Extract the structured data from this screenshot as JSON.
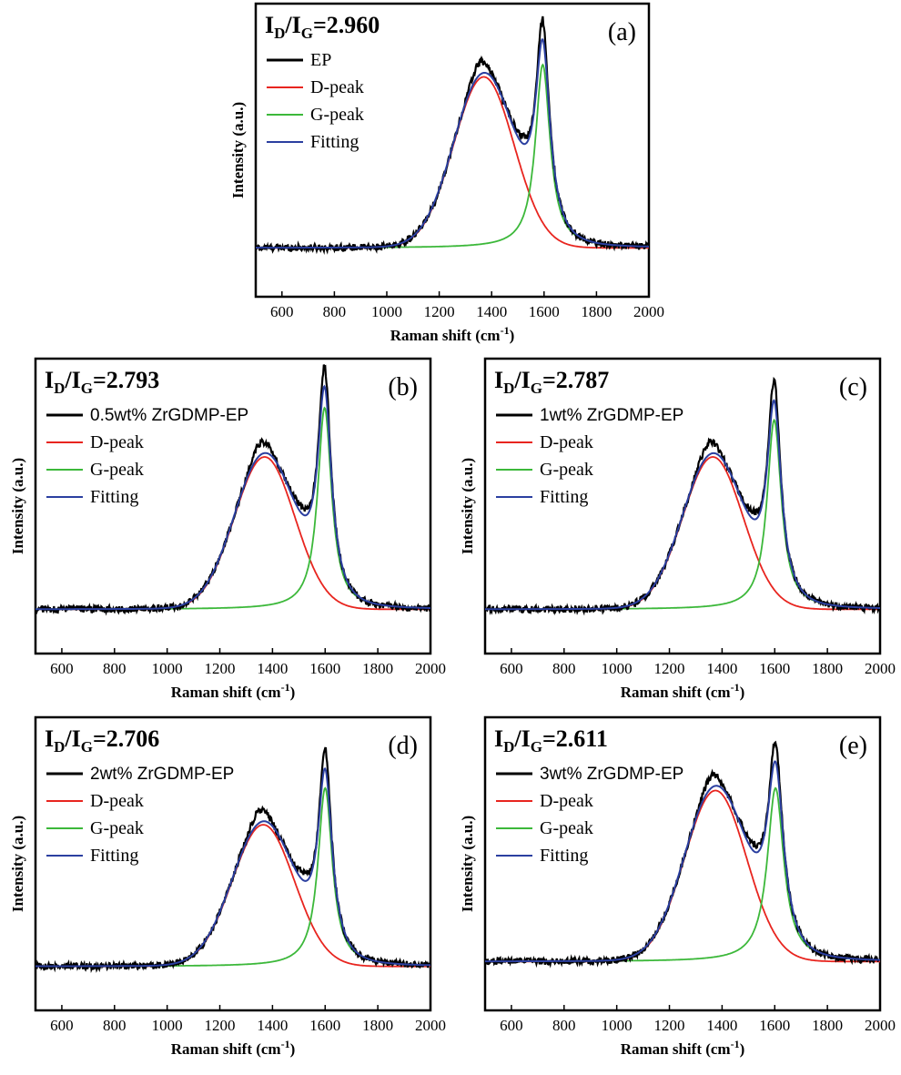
{
  "chart_data": [
    {
      "type": "line",
      "panel": "(a)",
      "ratio": {
        "prefix": "I",
        "sub1": "D",
        "slash": "/I",
        "sub2": "G",
        "value": "=2.960"
      },
      "xlabel": "Raman shift (cm",
      "xlabel_sup": "-1",
      "xlabel_end": ")",
      "ylabel": "Intensity (a.u.)",
      "xlim": [
        500,
        2000
      ],
      "ylim": [
        0,
        1.2
      ],
      "xticks": [
        600,
        800,
        1000,
        1200,
        1400,
        1600,
        1800,
        2000
      ],
      "legend": [
        "EP",
        "D-peak",
        "G-peak",
        "Fitting"
      ],
      "series": [
        {
          "name": "EP",
          "color": "#000000"
        },
        {
          "name": "D-peak",
          "color": "#e8251f"
        },
        {
          "name": "G-peak",
          "color": "#3cb83a"
        },
        {
          "name": "Fitting",
          "color": "#2b3fa0"
        }
      ],
      "d_peak": {
        "center": 1370,
        "height": 0.7,
        "width": 115
      },
      "g_peak": {
        "center": 1595,
        "height": 0.75,
        "width": 34
      },
      "baseline": 0.2
    },
    {
      "type": "line",
      "panel": "(b)",
      "ratio": {
        "prefix": "I",
        "sub1": "D",
        "slash": "/I",
        "sub2": "G",
        "value": "=2.793"
      },
      "xlabel": "Raman shift (cm",
      "xlabel_sup": "-1",
      "xlabel_end": ")",
      "ylabel": "Intensity (a.u.)",
      "xlim": [
        500,
        2000
      ],
      "ylim": [
        0,
        1.2
      ],
      "xticks": [
        600,
        800,
        1000,
        1200,
        1400,
        1600,
        1800,
        2000
      ],
      "legend": [
        "0.5wt% ZrGDMP-EP",
        "D-peak",
        "G-peak",
        "Fitting"
      ],
      "series": [
        {
          "name": "0.5wt% ZrGDMP-EP",
          "color": "#000000"
        },
        {
          "name": "D-peak",
          "color": "#e8251f"
        },
        {
          "name": "G-peak",
          "color": "#3cb83a"
        },
        {
          "name": "Fitting",
          "color": "#2b3fa0"
        }
      ],
      "d_peak": {
        "center": 1370,
        "height": 0.62,
        "width": 115
      },
      "g_peak": {
        "center": 1598,
        "height": 0.82,
        "width": 32
      },
      "baseline": 0.18
    },
    {
      "type": "line",
      "panel": "(c)",
      "ratio": {
        "prefix": "I",
        "sub1": "D",
        "slash": "/I",
        "sub2": "G",
        "value": "=2.787"
      },
      "xlabel": "Raman shift (cm",
      "xlabel_sup": "-1",
      "xlabel_end": ")",
      "ylabel": "Intensity (a.u.)",
      "xlim": [
        500,
        2000
      ],
      "ylim": [
        0,
        1.2
      ],
      "xticks": [
        600,
        800,
        1000,
        1200,
        1400,
        1600,
        1800,
        2000
      ],
      "legend": [
        "1wt% ZrGDMP-EP",
        "D-peak",
        "G-peak",
        "Fitting"
      ],
      "series": [
        {
          "name": "1wt% ZrGDMP-EP",
          "color": "#000000"
        },
        {
          "name": "D-peak",
          "color": "#e8251f"
        },
        {
          "name": "G-peak",
          "color": "#3cb83a"
        },
        {
          "name": "Fitting",
          "color": "#2b3fa0"
        }
      ],
      "d_peak": {
        "center": 1365,
        "height": 0.62,
        "width": 115
      },
      "g_peak": {
        "center": 1598,
        "height": 0.77,
        "width": 33
      },
      "baseline": 0.18
    },
    {
      "type": "line",
      "panel": "(d)",
      "ratio": {
        "prefix": "I",
        "sub1": "D",
        "slash": "/I",
        "sub2": "G",
        "value": "=2.706"
      },
      "xlabel": "Raman shift (cm",
      "xlabel_sup": "-1",
      "xlabel_end": ")",
      "ylabel": "Intensity (a.u.)",
      "xlim": [
        500,
        2000
      ],
      "ylim": [
        0,
        1.2
      ],
      "xticks": [
        600,
        800,
        1000,
        1200,
        1400,
        1600,
        1800,
        2000
      ],
      "legend": [
        "2wt% ZrGDMP-EP",
        "D-peak",
        "G-peak",
        "Fitting"
      ],
      "series": [
        {
          "name": "2wt% ZrGDMP-EP",
          "color": "#000000"
        },
        {
          "name": "D-peak",
          "color": "#e8251f"
        },
        {
          "name": "G-peak",
          "color": "#3cb83a"
        },
        {
          "name": "Fitting",
          "color": "#2b3fa0"
        }
      ],
      "d_peak": {
        "center": 1365,
        "height": 0.58,
        "width": 118
      },
      "g_peak": {
        "center": 1600,
        "height": 0.73,
        "width": 33
      },
      "baseline": 0.18
    },
    {
      "type": "line",
      "panel": "(e)",
      "ratio": {
        "prefix": "I",
        "sub1": "D",
        "slash": "/I",
        "sub2": "G",
        "value": "=2.611"
      },
      "xlabel": "Raman shift (cm",
      "xlabel_sup": "-1",
      "xlabel_end": ")",
      "ylabel": "Intensity (a.u.)",
      "xlim": [
        500,
        2000
      ],
      "ylim": [
        0,
        1.2
      ],
      "xticks": [
        600,
        800,
        1000,
        1200,
        1400,
        1600,
        1800,
        2000
      ],
      "legend": [
        "3wt% ZrGDMP-EP",
        "D-peak",
        "G-peak",
        "Fitting"
      ],
      "series": [
        {
          "name": "3wt% ZrGDMP-EP",
          "color": "#000000"
        },
        {
          "name": "D-peak",
          "color": "#e8251f"
        },
        {
          "name": "G-peak",
          "color": "#3cb83a"
        },
        {
          "name": "Fitting",
          "color": "#2b3fa0"
        }
      ],
      "d_peak": {
        "center": 1375,
        "height": 0.7,
        "width": 118
      },
      "g_peak": {
        "center": 1603,
        "height": 0.71,
        "width": 38
      },
      "baseline": 0.2
    }
  ]
}
